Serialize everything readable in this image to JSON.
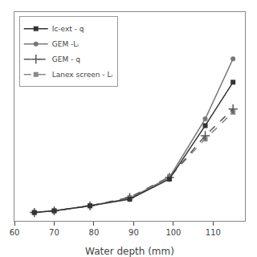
{
  "chart_data": {
    "type": "line",
    "xlabel": "Water depth (mm)",
    "xlim": [
      60,
      118
    ],
    "xticks": [
      60,
      70,
      80,
      90,
      100,
      110
    ],
    "ylim": [
      0.95,
      2.2
    ],
    "tick_labels": "x",
    "grid": false,
    "legend": "upper left",
    "series": [
      {
        "name": "Ic-ext - q",
        "color": "#333333",
        "line_style": "solid",
        "marker": "square",
        "x": [
          65,
          70,
          79,
          89,
          99,
          108,
          115
        ],
        "values": [
          1.0,
          1.01,
          1.04,
          1.08,
          1.2,
          1.52,
          1.78
        ]
      },
      {
        "name": "GEM -Lᵢ",
        "color": "#777777",
        "line_style": "solid",
        "marker": "circle",
        "x": [
          65,
          70,
          79,
          89,
          99,
          108,
          115
        ],
        "values": [
          1.0,
          1.01,
          1.04,
          1.085,
          1.21,
          1.56,
          1.92
        ]
      },
      {
        "name": "GEM - q",
        "color": "#555555",
        "line_style": "dashed",
        "marker": "cross",
        "x": [
          65,
          70,
          79,
          89,
          99,
          108,
          115
        ],
        "values": [
          1.0,
          1.01,
          1.04,
          1.09,
          1.21,
          1.46,
          1.62
        ]
      },
      {
        "name": "Lanex screen - Lᵢ",
        "color": "#888888",
        "line_style": "dashed",
        "marker": "square",
        "x": [
          65,
          70,
          79,
          89,
          99,
          108,
          115
        ],
        "values": [
          1.0,
          1.01,
          1.04,
          1.09,
          1.215,
          1.44,
          1.6
        ]
      }
    ]
  }
}
